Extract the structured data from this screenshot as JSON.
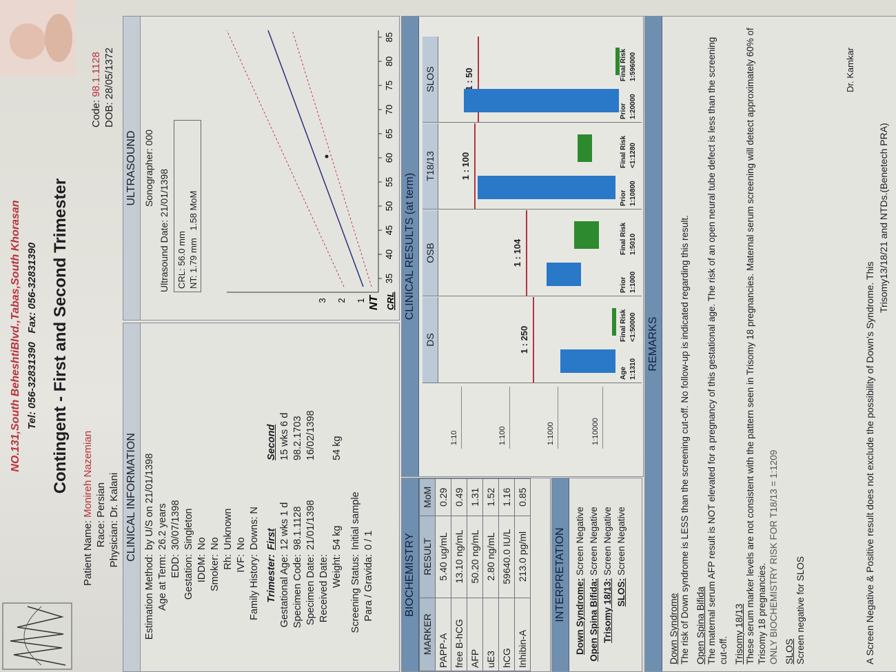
{
  "header": {
    "address": "NO.131,South BeheshtiBlvd.,Tabas,South Khorasan",
    "contact": "Tel: 056-32831390   Fax: 056-32831390",
    "title": "Contingent - First and Second Trimester"
  },
  "patient": {
    "name_label": "Patient Name:",
    "name": "Monireh Nazemian",
    "race_label": "Race:",
    "race": "Persian",
    "physician_label": "Physician:",
    "physician": "Dr. Kalani",
    "code_label": "Code:",
    "code": "98.1.1128",
    "dob_label": "DOB:",
    "dob": "28/05/1372"
  },
  "clinical_information": {
    "title": "CLINICAL INFORMATION",
    "rows": [
      [
        "Estimation Method:",
        "by U/S on 21/01/1398"
      ],
      [
        "Age at Term:",
        "26.2 years"
      ],
      [
        "EDD:",
        "30/07/1398"
      ],
      [
        "Gestation:",
        "Singleton"
      ],
      [
        "IDDM:",
        "No"
      ],
      [
        "Smoker:",
        "No"
      ],
      [
        "Rh:",
        "Unknown"
      ],
      [
        "IVF:",
        "No"
      ],
      [
        "Family History:",
        "Downs: N"
      ]
    ],
    "trimester_header": [
      "Trimester:",
      "First",
      "Second"
    ],
    "trimester_rows": [
      [
        "Gestational Age:",
        "12 wks 1 d",
        "15 wks 6 d"
      ],
      [
        "Specimen Code:",
        "98.1.1128",
        "98.2.1703"
      ],
      [
        "Specimen Date:",
        "21/01/1398",
        "16/02/1398"
      ],
      [
        "Received Date:"
      ],
      [
        "Weight:",
        "54 kg",
        "54 kg"
      ]
    ],
    "status_rows": [
      [
        "Screening Status:",
        "Initial sample"
      ],
      [
        "Para / Gravida:",
        "0 / 1"
      ]
    ]
  },
  "ultrasound": {
    "title": "ULTRASOUND",
    "sonographer": "Sonographer: 000",
    "date": "Ultrasound Date: 21/01/1398",
    "crl": "CRL:  56.0 mm",
    "nt": "NT:  1.79 mm",
    "nt_mom": "1.58 MoM",
    "y_label": "NT",
    "x_label": "CRL",
    "y_ticks": [
      "1",
      "2",
      "3"
    ],
    "x_ticks": [
      "35",
      "40",
      "45",
      "50",
      "55",
      "60",
      "65",
      "70",
      "75",
      "80",
      "85"
    ]
  },
  "biochemistry": {
    "title": "BIOCHEMISTRY",
    "header": [
      "MARKER",
      "RESULT",
      "MoM"
    ],
    "rows": [
      [
        "PAPP-A",
        "5.40 ug/mL",
        "0.29"
      ],
      [
        "free B-hCG",
        "13.10 ng/mL",
        "0.49"
      ],
      [
        "AFP",
        "50.20 ng/mL",
        "1.31"
      ],
      [
        "uE3",
        "2.80 ng/mL",
        "1.52"
      ],
      [
        "hCG",
        "59640.0 IU/L",
        "1.16"
      ],
      [
        "Inhibin-A",
        "213.0 pg/ml",
        "0.85"
      ]
    ]
  },
  "interpretation": {
    "title": "INTERPRETATION",
    "rows": [
      [
        "Down Syndrome:",
        "Screen Negative"
      ],
      [
        "Open Spina Bifida:",
        "Screen Negative"
      ],
      [
        "Trisomy 18/13:",
        "Screen Negative"
      ],
      [
        "SLOS:",
        "Screen Negative"
      ]
    ]
  },
  "clinical_results": {
    "title": "CLINICAL RESULTS (at term)",
    "scale": [
      "1:10",
      "1:100",
      "1:1000",
      "1:10000"
    ],
    "panels": [
      {
        "name": "DS",
        "risk": "1 : 250",
        "labels": [
          "Age",
          "Final Risk"
        ],
        "values": [
          "1:1310",
          "<1:50000"
        ]
      },
      {
        "name": "OSB",
        "risk": "1 : 104",
        "labels": [
          "Prior",
          "Final Risk"
        ],
        "values": [
          "1:1000",
          "1:5010"
        ]
      },
      {
        "name": "T18/13",
        "risk": "1 : 100",
        "labels": [
          "Prior",
          "Final Risk"
        ],
        "values": [
          "1:10800",
          "<1:1280"
        ]
      },
      {
        "name": "SLOS",
        "risk": "1 : 50",
        "labels": [
          "Prior",
          "Final Risk"
        ],
        "values": [
          "1:20000",
          "1:596000"
        ]
      }
    ]
  },
  "remarks": {
    "title": "REMARKS",
    "sections": [
      {
        "heading": "Down Syndrome",
        "text": "The risk of Down syndrome is LESS than the screening cut-off. No follow-up is indicated regarding this result."
      },
      {
        "heading": "Open Spina Bifida",
        "text": "The maternal serum AFP result is NOT elevated for a pregnancy of this gestational age.  The risk of an open neural tube defect is less than the screening cut-off."
      },
      {
        "heading": "Trisomy 18/13",
        "text": "These serum marker levels are not consistent with the pattern seen in Trisomy 18 pregnancies. Maternal serum screening will detect approximately 60% of Trisomy 18 pregnancies.",
        "note": "ONLY BIOCHEMISTRY RISK FOR T18/13 = 1:1209"
      },
      {
        "heading": "SLOS",
        "text": "Screen negative for SLOS"
      }
    ],
    "footer": "A Screen Negative & Positive result does not exclude the possibility of Down's Syndrome. This",
    "footer2": "Trisomy13/18/21 and NTDs.(Benetech PRA)",
    "signature": "Dr. Kamkar"
  }
}
